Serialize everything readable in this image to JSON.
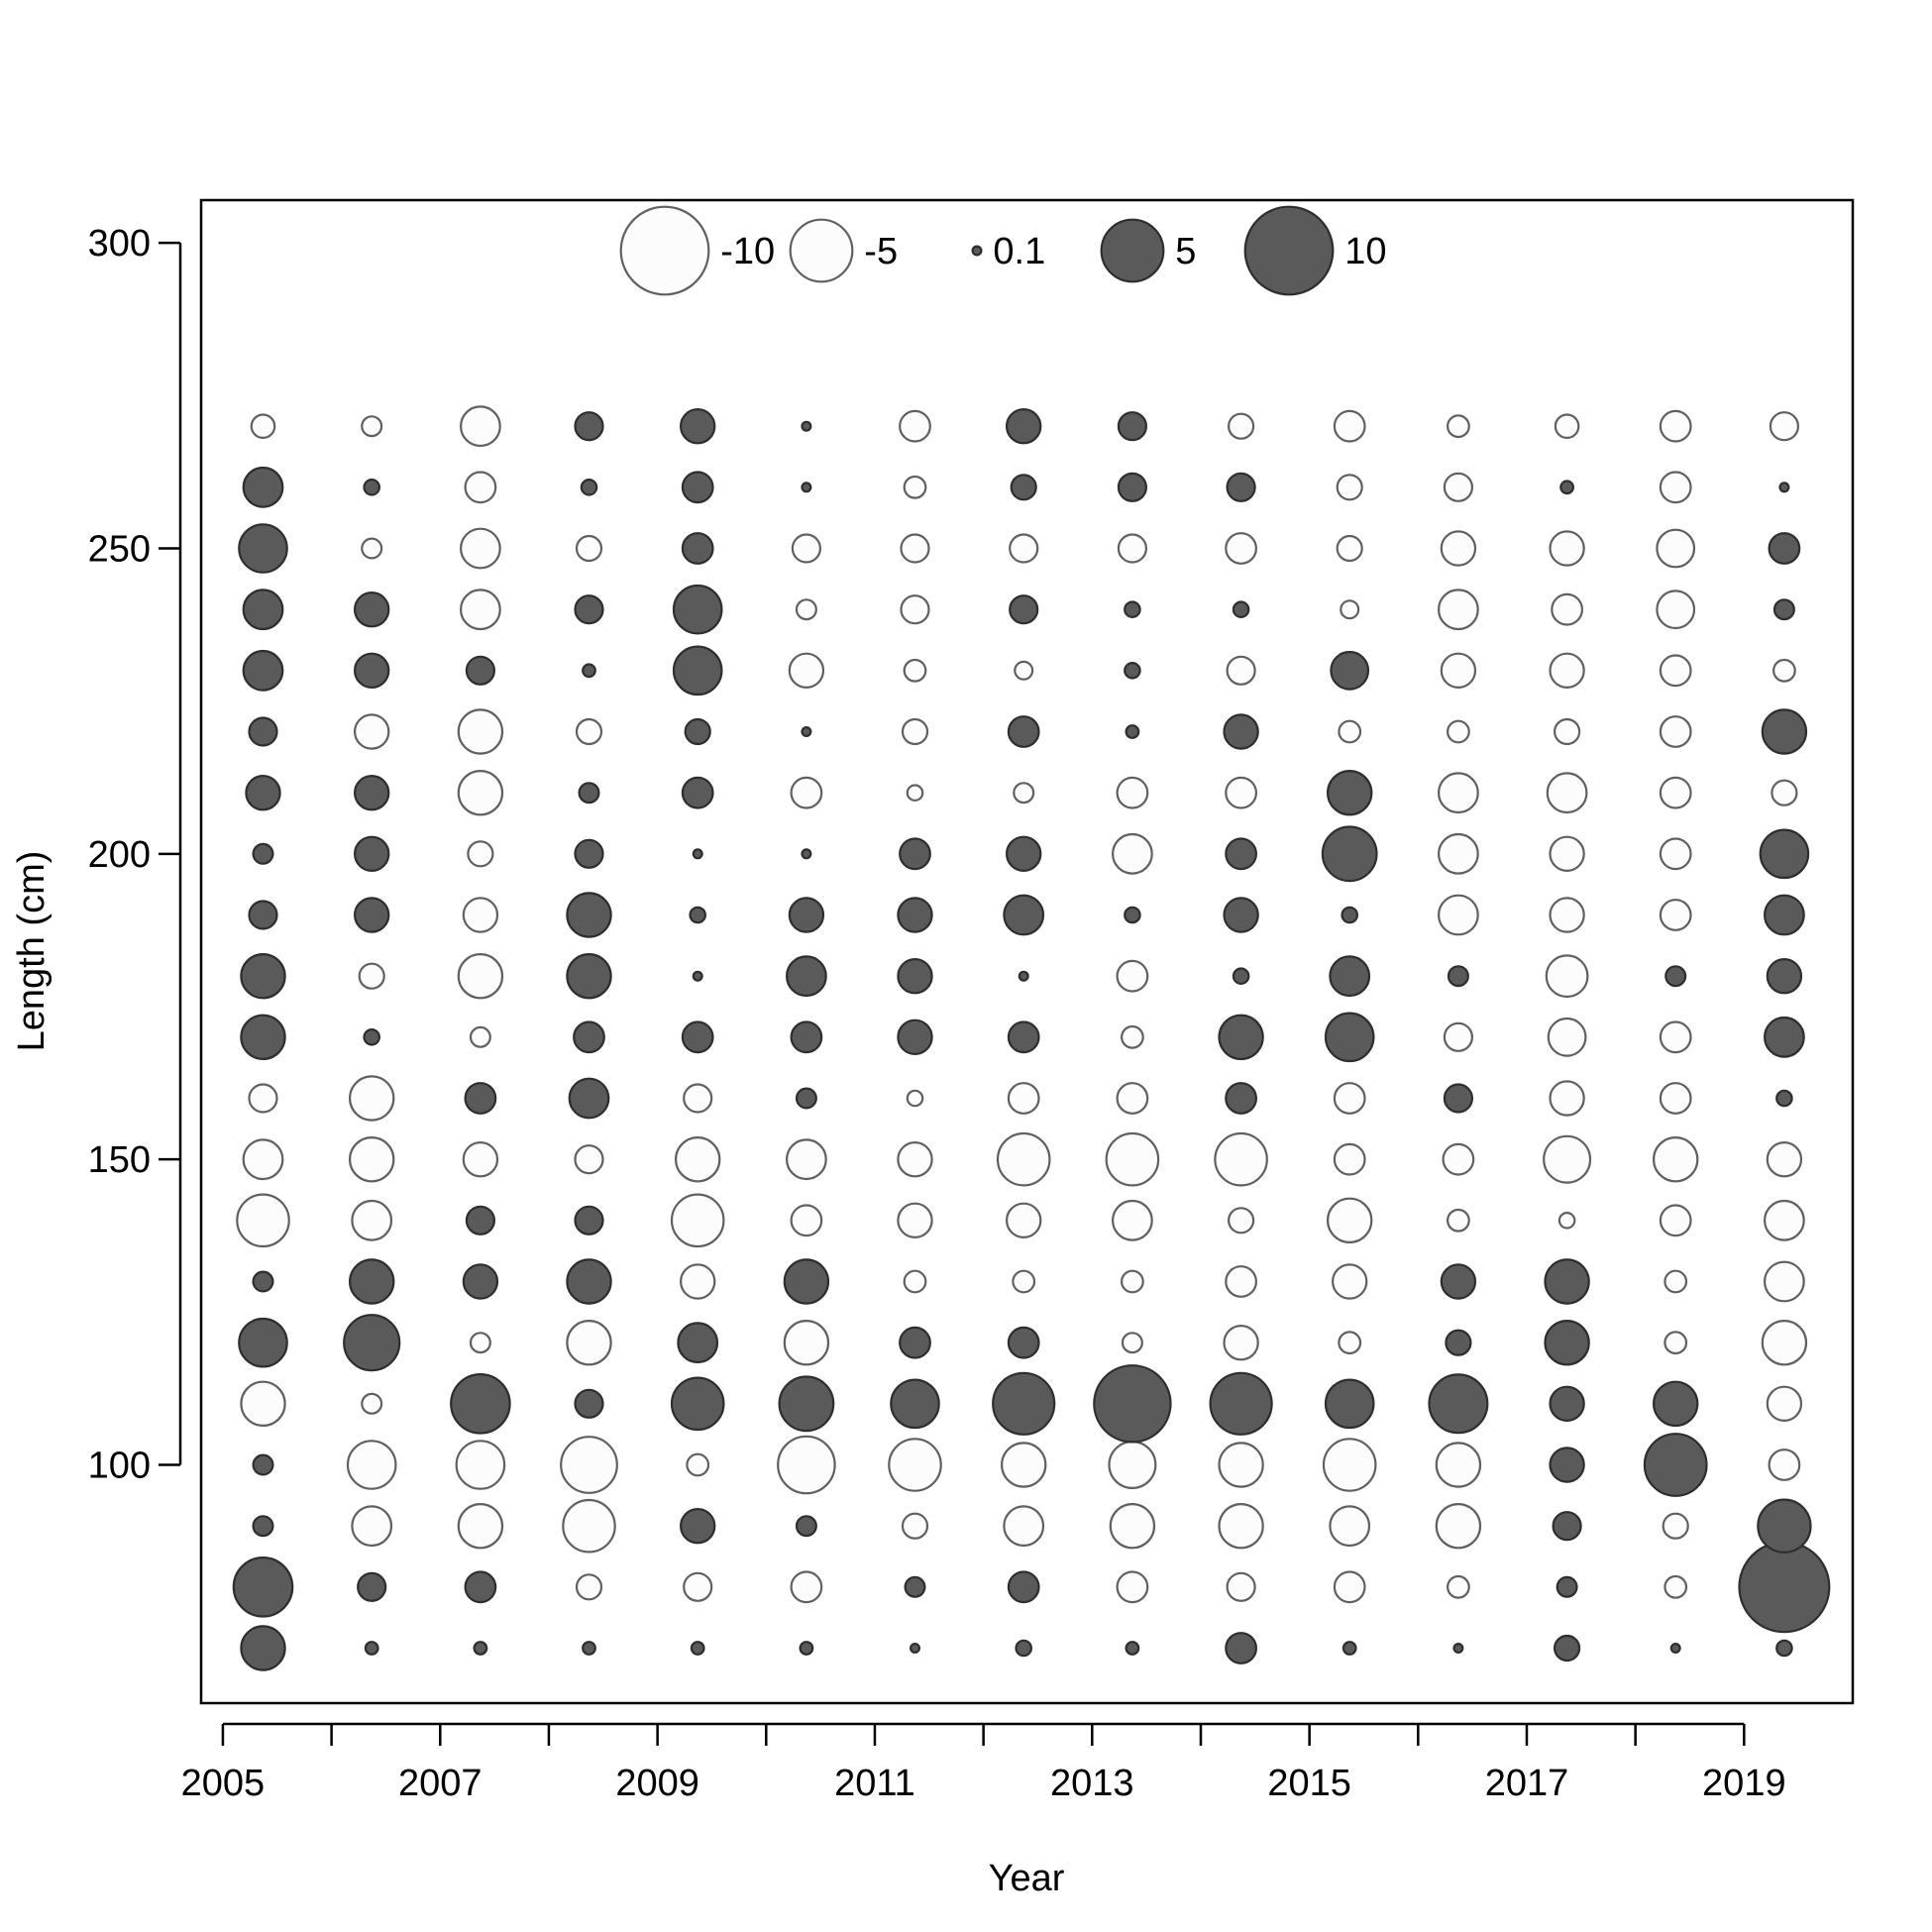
{
  "chart_data": {
    "type": "scatter",
    "subtype": "bubble",
    "xlabel": "Year",
    "ylabel": "Length (cm)",
    "xlim": [
      2004.8,
      2020.0
    ],
    "ylim": [
      61,
      307
    ],
    "x_ticks": [
      2005,
      2006,
      2007,
      2008,
      2009,
      2010,
      2011,
      2012,
      2013,
      2014,
      2015,
      2016,
      2017,
      2018,
      2019
    ],
    "x_tick_labels": [
      "2005",
      "",
      "2007",
      "",
      "2009",
      "",
      "2011",
      "",
      "2013",
      "",
      "2015",
      "",
      "2017",
      "",
      "2019"
    ],
    "y_ticks": [
      100,
      150,
      200,
      250,
      300
    ],
    "y_tick_labels": [
      "100",
      "150",
      "200",
      "250",
      "300"
    ],
    "grid": false,
    "legend": {
      "position": "top-center",
      "entries": [
        {
          "label": "-10",
          "value": -10
        },
        {
          "label": "-5",
          "value": -5
        },
        {
          "label": "0.1",
          "value": 0.1
        },
        {
          "label": "5",
          "value": 5
        },
        {
          "label": "10",
          "value": 10
        }
      ]
    },
    "colors": {
      "positive_fill": "#5a5a5a",
      "positive_stroke": "#2e2e2e",
      "negative_fill": "#fcfcfc",
      "negative_stroke": "#606060",
      "axis": "#000000"
    },
    "x": [
      2005.37,
      2006.37,
      2007.37,
      2008.37,
      2009.37,
      2010.37,
      2011.37,
      2012.37,
      2013.37,
      2014.37,
      2015.37,
      2016.37,
      2017.37,
      2018.37,
      2019.37
    ],
    "lengths": [
      70,
      80,
      90,
      100,
      110,
      120,
      130,
      140,
      150,
      160,
      170,
      180,
      190,
      200,
      210,
      220,
      230,
      240,
      250,
      260,
      270
    ],
    "residuals": [
      [
        2.5,
        4.5,
        0.5,
        0.5,
        -2.5,
        3,
        0.5,
        -3.5,
        -2,
        -1,
        2.5,
        2.5,
        1,
        0.5,
        1.5,
        1,
        2,
        2,
        3,
        2,
        -0.7
      ],
      [
        0.2,
        1,
        -2,
        -3,
        -0.5,
        4,
        2.5,
        -2,
        -2.5,
        -2.5,
        0.3,
        -0.8,
        1.5,
        1.5,
        1.5,
        -1.5,
        1.5,
        1.5,
        -0.5,
        0.3,
        -0.5
      ],
      [
        0.2,
        1.2,
        -2.5,
        -3,
        4.5,
        -0.5,
        1.5,
        1,
        -1.5,
        1.2,
        -0.5,
        -2.5,
        -1.5,
        -0.8,
        -2.5,
        -2.5,
        1,
        -2,
        -2,
        -1.2,
        -2
      ],
      [
        0.2,
        -0.8,
        -3.5,
        -4.1,
        1,
        -2.5,
        2.5,
        1,
        -1,
        2,
        1.2,
        2.5,
        2.5,
        1,
        0.5,
        -0.8,
        0.2,
        1,
        -0.8,
        0.3,
        1
      ],
      [
        0.2,
        -1,
        1.5,
        -0.6,
        3.5,
        2,
        -1.5,
        -3.5,
        -2.5,
        -1,
        1.2,
        0.1,
        0.3,
        0.1,
        1.2,
        0.8,
        3,
        3,
        1.2,
        1.2,
        1.5
      ],
      [
        0.2,
        -1.2,
        0.5,
        -4.2,
        3.8,
        -2.5,
        2.5,
        -1.2,
        -2,
        0.5,
        1.2,
        2,
        1.5,
        0.1,
        -1.2,
        0.1,
        -1.5,
        -0.5,
        -1,
        0.1,
        0.1
      ],
      [
        0.1,
        0.5,
        -0.8,
        -3.5,
        3,
        1.2,
        -0.6,
        -1.5,
        -1.5,
        -0.3,
        1.5,
        1.5,
        1.5,
        1.2,
        -0.3,
        -0.8,
        -0.6,
        -1,
        -1,
        -0.6,
        -1.2
      ],
      [
        0.3,
        1.2,
        -2,
        -2.5,
        4.9,
        1.2,
        -0.6,
        -1.5,
        -3.5,
        -1.2,
        1.2,
        0.1,
        2,
        1.5,
        -0.5,
        1.2,
        -0.4,
        1,
        -1,
        0.8,
        1.5
      ],
      [
        0.2,
        -1.2,
        -2.5,
        -2.8,
        7.6,
        -0.5,
        -0.6,
        -2,
        -3.5,
        -1.2,
        -0.6,
        -1.2,
        0.3,
        -2,
        -1.2,
        0.2,
        0.3,
        0.3,
        -1,
        1,
        1
      ],
      [
        1.2,
        -1,
        -2.5,
        -2.5,
        4.9,
        -1.5,
        -1.2,
        -0.8,
        -3.5,
        1.2,
        2.5,
        0.3,
        1.5,
        1.2,
        -1.2,
        1.5,
        -1,
        0.3,
        -1.2,
        1,
        -0.8
      ],
      [
        0.2,
        -1.2,
        -2,
        -3.5,
        3,
        -0.6,
        -1.5,
        -2.5,
        -1.2,
        -1.2,
        3,
        2,
        0.3,
        3.8,
        2.5,
        -0.6,
        1.8,
        -0.4,
        -0.8,
        -0.8,
        -1.2
      ],
      [
        0.1,
        -0.6,
        -2.5,
        -2.5,
        4.4,
        0.8,
        1.5,
        -0.6,
        -1.2,
        1,
        -1,
        0.5,
        -2,
        -2,
        -2,
        -0.6,
        -1.5,
        -2,
        -1.5,
        -1,
        -0.6
      ],
      [
        0.8,
        0.5,
        1,
        1.5,
        1.5,
        2.5,
        2.5,
        -0.3,
        -2.8,
        -1.5,
        -1.8,
        -2.2,
        -1.5,
        -1.5,
        -2,
        -0.8,
        -1.5,
        -1.2,
        -1.5,
        0.2,
        -0.7
      ],
      [
        0.1,
        -0.6,
        -0.8,
        5,
        2.5,
        -0.6,
        -0.6,
        -1.2,
        -2.5,
        -1.2,
        -1.2,
        0.5,
        -1.2,
        -1.2,
        -1.2,
        -1.2,
        -1.2,
        -1.8,
        -1.8,
        -1.2,
        -1.2
      ],
      [
        0.3,
        10.5,
        3.6,
        -1.2,
        -1.5,
        -2.5,
        -2,
        -2,
        -1.5,
        0.3,
        2,
        1.5,
        2,
        3,
        -0.8,
        2.5,
        -0.6,
        0.5,
        1.2,
        0.1,
        -1
      ]
    ]
  }
}
